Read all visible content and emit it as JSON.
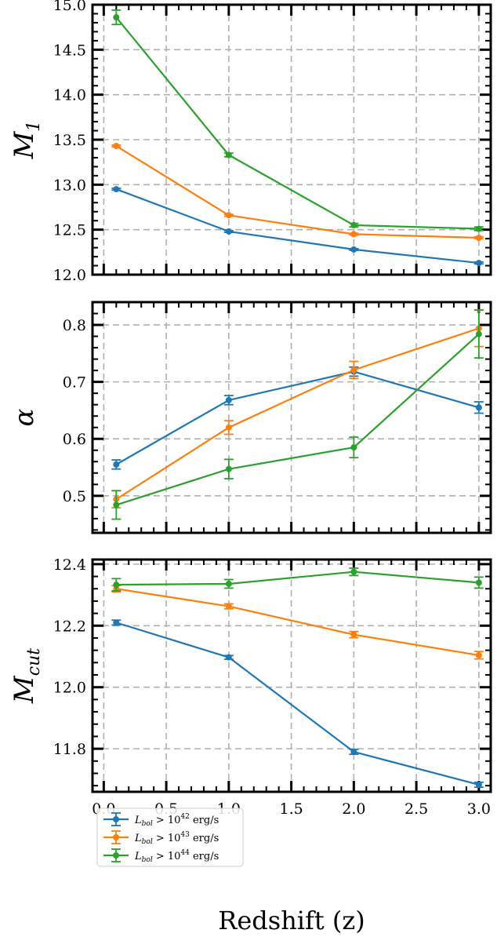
{
  "chart_data": [
    {
      "type": "line",
      "ylabel": "M",
      "ylabel_sub": "1",
      "x": [
        0.1,
        1.0,
        2.0,
        3.0
      ],
      "ylim": [
        12.0,
        15.0
      ],
      "yticks": [
        "12.0",
        "12.5",
        "13.0",
        "13.5",
        "14.0",
        "14.5",
        "15.0"
      ],
      "grid": true,
      "series": [
        {
          "color": "#1f77b4",
          "values": [
            12.95,
            12.48,
            12.28,
            12.13
          ],
          "errors": [
            0.01,
            0.01,
            0.01,
            0.01
          ]
        },
        {
          "color": "#ff7f0e",
          "values": [
            13.43,
            12.66,
            12.45,
            12.41
          ],
          "errors": [
            0.01,
            0.01,
            0.01,
            0.01
          ]
        },
        {
          "color": "#2ca02c",
          "values": [
            14.86,
            13.33,
            12.55,
            12.51
          ],
          "errors": [
            0.08,
            0.02,
            0.02,
            0.02
          ]
        }
      ]
    },
    {
      "type": "line",
      "ylabel": "α",
      "x": [
        0.1,
        1.0,
        2.0,
        3.0
      ],
      "ylim": [
        0.435,
        0.84
      ],
      "yticks": [
        "0.5",
        "0.6",
        "0.7",
        "0.8"
      ],
      "grid": true,
      "series": [
        {
          "color": "#1f77b4",
          "values": [
            0.555,
            0.668,
            0.718,
            0.655
          ],
          "errors": [
            0.008,
            0.008,
            0.008,
            0.01
          ]
        },
        {
          "color": "#ff7f0e",
          "values": [
            0.494,
            0.62,
            0.721,
            0.794
          ],
          "errors": [
            0.015,
            0.012,
            0.015,
            0.032
          ]
        },
        {
          "color": "#2ca02c",
          "values": [
            0.484,
            0.547,
            0.585,
            0.784
          ],
          "errors": [
            0.025,
            0.017,
            0.018,
            0.042
          ]
        }
      ]
    },
    {
      "type": "line",
      "ylabel": "M",
      "ylabel_sub": "cut",
      "x": [
        0.1,
        1.0,
        2.0,
        3.0
      ],
      "ylim": [
        11.66,
        12.415
      ],
      "yticks": [
        "11.8",
        "12.0",
        "12.2",
        "12.4"
      ],
      "xlabel": "Redshift (z)",
      "xticks": [
        "0.0",
        "0.5",
        "1.0",
        "1.5",
        "2.0",
        "2.5",
        "3.0"
      ],
      "grid": true,
      "legend_position": "lower-left",
      "series": [
        {
          "name": "L_bol > 10^42 erg/s",
          "color": "#1f77b4",
          "values": [
            12.21,
            12.097,
            11.79,
            11.683
          ],
          "errors": [
            0.008,
            0.006,
            0.008,
            0.008
          ]
        },
        {
          "name": "L_bol > 10^43 erg/s",
          "color": "#ff7f0e",
          "values": [
            12.32,
            12.263,
            12.171,
            12.104
          ],
          "errors": [
            0.01,
            0.008,
            0.01,
            0.012
          ]
        },
        {
          "name": "L_bol > 10^44 erg/s",
          "color": "#2ca02c",
          "values": [
            12.333,
            12.336,
            12.375,
            12.34
          ],
          "errors": [
            0.02,
            0.014,
            0.012,
            0.018
          ]
        }
      ]
    }
  ],
  "legend": {
    "entries": [
      {
        "prefix": "L",
        "sub": "bol",
        "mid": " > 10",
        "sup": "42",
        "unit": " erg/s"
      },
      {
        "prefix": "L",
        "sub": "bol",
        "mid": " > 10",
        "sup": "43",
        "unit": " erg/s"
      },
      {
        "prefix": "L",
        "sub": "bol",
        "mid": " > 10",
        "sup": "44",
        "unit": " erg/s"
      }
    ]
  }
}
